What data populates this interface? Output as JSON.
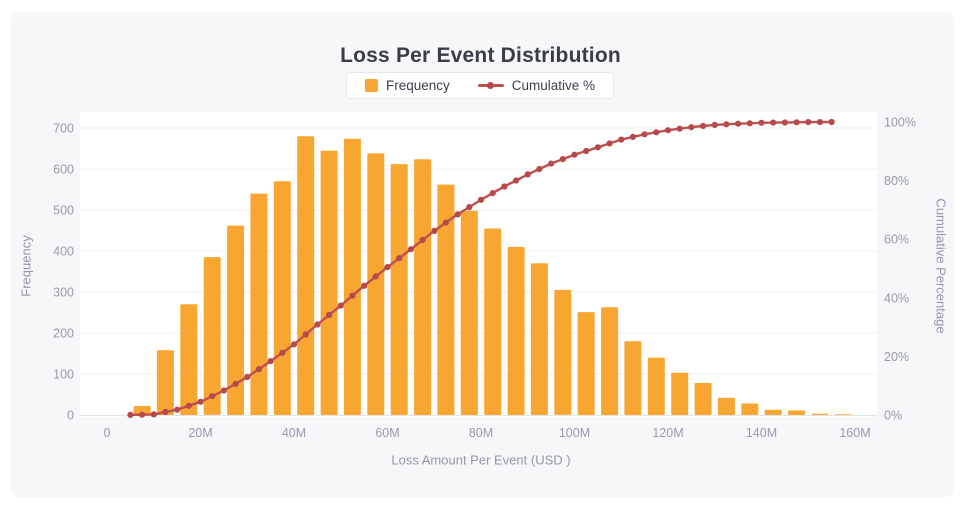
{
  "colors": {
    "bar": "#F8A632",
    "line": "#C0504D",
    "marker": "#B5494B",
    "title_text": "#383D4A",
    "tick_text": "#959BAD",
    "grid_line": "#EFEFF3",
    "axis_line": "#E2E4EA",
    "card_background": "#F7F7F9",
    "plot_background": "#FFFFFF",
    "legend_border": "#E8E8EC"
  },
  "chart_data": {
    "type": "bar",
    "subtype": "pareto-histogram-with-cumulative-line",
    "title": "Loss Per Event Distribution",
    "xlabel": "Loss Amount Per Event (USD )",
    "legend": [
      "Frequency",
      "Cumulative %"
    ],
    "legend_position": "top-center",
    "grid": "horizontal gridlines only",
    "x_axis": {
      "unit": "millions USD",
      "range_M": [
        0,
        160
      ],
      "tick_values_M": [
        0,
        20,
        40,
        60,
        80,
        100,
        120,
        140,
        160
      ],
      "tick_labels": [
        "0",
        "20M",
        "40M",
        "60M",
        "80M",
        "100M",
        "120M",
        "140M",
        "160M"
      ]
    },
    "y_left": {
      "label": "Frequency",
      "min": 0,
      "max": 700,
      "tick_values": [
        0,
        100,
        200,
        300,
        400,
        500,
        600,
        700
      ],
      "tick_labels": [
        "0",
        "100",
        "200",
        "300",
        "400",
        "500",
        "600",
        "700"
      ]
    },
    "y_right": {
      "label": "Cumulative Percentage",
      "min_pct": 0,
      "max_pct": 100,
      "tick_values_pct": [
        0,
        20,
        40,
        60,
        80,
        100
      ],
      "tick_labels": [
        "0%",
        "20%",
        "40%",
        "60%",
        "80%",
        "100%"
      ]
    },
    "series": [
      {
        "name": "Frequency",
        "type": "bar",
        "bin_width_M": 5,
        "bin_centers_M": [
          7.5,
          12.5,
          17.5,
          22.5,
          27.5,
          32.5,
          37.5,
          42.5,
          47.5,
          52.5,
          57.5,
          62.5,
          67.5,
          72.5,
          77.5,
          82.5,
          87.5,
          92.5,
          97.5,
          102.5,
          107.5,
          112.5,
          117.5,
          122.5,
          127.5,
          132.5,
          137.5,
          142.5,
          147.5,
          152.5,
          157.5
        ],
        "values": [
          22,
          158,
          270,
          385,
          462,
          540,
          570,
          680,
          645,
          674,
          638,
          612,
          624,
          562,
          498,
          455,
          410,
          370,
          305,
          251,
          263,
          180,
          140,
          103,
          78,
          42,
          28,
          13,
          11,
          3,
          2
        ]
      },
      {
        "name": "Cumulative %",
        "type": "line",
        "x_start_M": 5,
        "x_step_M": 2.5,
        "values_pct": [
          0.05,
          0.11,
          0.22,
          1.01,
          1.8,
          3.15,
          4.5,
          6.43,
          8.35,
          10.66,
          12.98,
          15.68,
          18.38,
          21.23,
          24.08,
          27.48,
          30.89,
          34.12,
          37.34,
          40.71,
          44.09,
          47.28,
          50.47,
          53.53,
          56.59,
          59.71,
          62.84,
          65.65,
          68.46,
          70.95,
          73.44,
          75.72,
          78.0,
          80.05,
          82.1,
          83.95,
          85.8,
          87.33,
          88.85,
          90.11,
          91.36,
          92.68,
          94.0,
          94.9,
          95.8,
          96.5,
          97.2,
          97.72,
          98.23,
          98.62,
          99.01,
          99.22,
          99.43,
          99.57,
          99.71,
          99.78,
          99.84,
          99.9,
          99.95,
          99.97,
          99.99
        ]
      }
    ]
  }
}
